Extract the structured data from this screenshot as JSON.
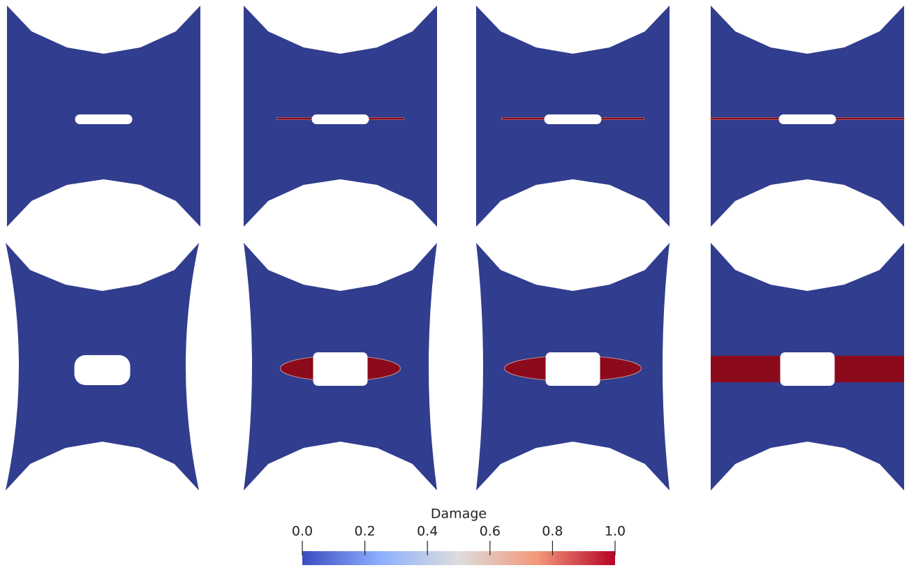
{
  "colorbar": {
    "title": "Damage",
    "lim": [
      0,
      1
    ],
    "ticks": [
      {
        "value": 0,
        "label": "0.0"
      },
      0.2,
      0.4,
      0.6,
      0.8,
      {
        "value": 1,
        "label": "1.0"
      }
    ],
    "colors": [
      "#3b4cc0",
      "#8db0fe",
      "#dddddd",
      "#f4987a",
      "#b40426"
    ]
  }
}
